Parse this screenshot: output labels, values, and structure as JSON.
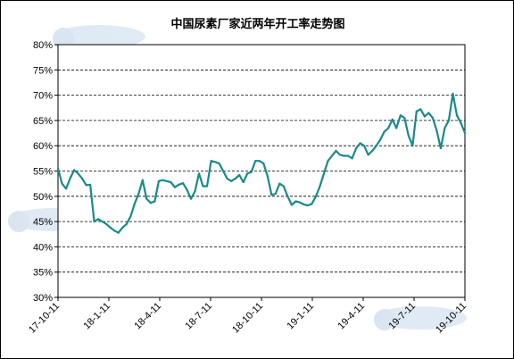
{
  "chart_data": {
    "type": "line",
    "title": "中国尿素厂家近两年开工率走势图",
    "xlabel": "",
    "ylabel": "",
    "ylim": [
      30,
      80
    ],
    "yticks": [
      "30%",
      "35%",
      "40%",
      "45%",
      "50%",
      "55%",
      "60%",
      "65%",
      "70%",
      "75%",
      "80%"
    ],
    "xtick_labels": [
      "17-10-11",
      "18-1-11",
      "18-4-11",
      "18-7-11",
      "18-10-11",
      "19-1-11",
      "19-4-11",
      "19-7-11",
      "19-10-11"
    ],
    "grid": "horizontal dashed",
    "legend": "none",
    "line_color": "#1a8a8a",
    "plot_background": "#ffffff",
    "series": [
      {
        "values": [
          55.5,
          52.5,
          51.5,
          53.5,
          55.2,
          54.5,
          53.5,
          52.2,
          52.3,
          45.0,
          45.5,
          45.0,
          44.5,
          43.8,
          43.2,
          42.8,
          43.8,
          44.5,
          46.0,
          48.5,
          50.5,
          53.2,
          49.5,
          48.7,
          49.0,
          53.0,
          53.2,
          53.0,
          52.8,
          51.8,
          52.3,
          52.6,
          51.3,
          49.5,
          51.0,
          54.5,
          52.0,
          52.0,
          57.0,
          56.8,
          56.5,
          55.0,
          53.5,
          53.0,
          53.5,
          54.2,
          52.8,
          54.5,
          54.8,
          57.0,
          57.0,
          56.5,
          54.0,
          50.3,
          50.5,
          52.5,
          52.0,
          50.0,
          48.3,
          49.0,
          48.8,
          48.4,
          48.2,
          48.5,
          50.0,
          52.0,
          54.5,
          57.0,
          58.0,
          59.0,
          58.2,
          58.0,
          58.0,
          57.5,
          59.5,
          60.5,
          60.0,
          58.2,
          59.0,
          60.0,
          61.2,
          62.8,
          63.5,
          65.2,
          63.5,
          66.0,
          65.5,
          62.0,
          60.0,
          66.8,
          67.2,
          65.8,
          66.5,
          65.5,
          63.0,
          59.5,
          63.5,
          65.0,
          70.3,
          66.0,
          64.5,
          62.5
        ]
      }
    ]
  }
}
